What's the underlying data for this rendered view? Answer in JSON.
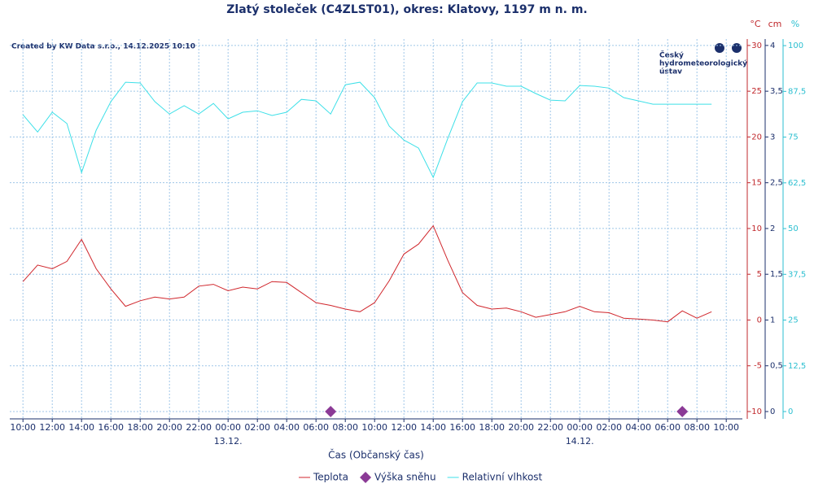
{
  "chart_data": {
    "type": "line",
    "title": "Zlatý stoleček (C4ZLST01), okres: Klatovy, 1197 m n. m.",
    "credit": "Created by KW Data s.r.o., 14.12.2025 10:10",
    "logo_text": [
      "Český",
      "hydrometeorologický",
      "ústav"
    ],
    "x_label": "Čas (Občanský čas)",
    "y_label": "°C",
    "y2_label": "cm",
    "y3_label": "%",
    "xlim": [
      -0.9,
      49.1
    ],
    "xticks": [
      {
        "value": 0,
        "label": "10:00"
      },
      {
        "value": 2,
        "label": "12:00"
      },
      {
        "value": 4,
        "label": "14:00"
      },
      {
        "value": 6,
        "label": "16:00"
      },
      {
        "value": 8,
        "label": "18:00"
      },
      {
        "value": 10,
        "label": "20:00"
      },
      {
        "value": 12,
        "label": "22:00"
      },
      {
        "value": 14,
        "label": "00:00"
      },
      {
        "value": 16,
        "label": "02:00"
      },
      {
        "value": 18,
        "label": "04:00"
      },
      {
        "value": 20,
        "label": "06:00"
      },
      {
        "value": 22,
        "label": "08:00"
      },
      {
        "value": 24,
        "label": "10:00"
      },
      {
        "value": 26,
        "label": "12:00"
      },
      {
        "value": 28,
        "label": "14:00"
      },
      {
        "value": 30,
        "label": "16:00"
      },
      {
        "value": 32,
        "label": "18:00"
      },
      {
        "value": 34,
        "label": "20:00"
      },
      {
        "value": 36,
        "label": "22:00"
      },
      {
        "value": 38,
        "label": "00:00"
      },
      {
        "value": 40,
        "label": "02:00"
      },
      {
        "value": 42,
        "label": "04:00"
      },
      {
        "value": 44,
        "label": "06:00"
      },
      {
        "value": 46,
        "label": "08:00"
      },
      {
        "value": 48,
        "label": "10:00"
      }
    ],
    "date_ticks": [
      {
        "value": 14,
        "label": "13.12."
      },
      {
        "value": 38,
        "label": "14.12."
      }
    ],
    "ylim": [
      -10.8,
      30.7
    ],
    "yticks": [
      30,
      25,
      20,
      15,
      10,
      5,
      0,
      -5,
      -10
    ],
    "y2lim": [
      -0.08,
      4.07
    ],
    "y2ticks": [
      4,
      {
        "value": 3.5,
        "label": "3,5"
      },
      3,
      {
        "value": 2.5,
        "label": "2,5"
      },
      2,
      {
        "value": 1.5,
        "label": "1,5"
      },
      1,
      {
        "value": 0.5,
        "label": "0,5"
      },
      0
    ],
    "y3lim": [
      -2,
      101.8
    ],
    "y3ticks": [
      100,
      {
        "value": 87.5,
        "label": "87,5"
      },
      75,
      {
        "value": 62.5,
        "label": "62,5"
      },
      50,
      {
        "value": 37.5,
        "label": "37,5"
      },
      25,
      {
        "value": 12.5,
        "label": "12,5"
      },
      0
    ],
    "grid": true,
    "series": [
      {
        "name": "Teplota",
        "color": "#d0262c",
        "axis": "y",
        "kind": "line",
        "x": [
          0,
          1,
          2,
          3,
          4,
          5,
          6,
          7,
          8,
          9,
          10,
          11,
          12,
          13,
          14,
          15,
          16,
          17,
          18,
          19,
          20,
          21,
          22,
          23,
          24,
          25,
          26,
          27,
          28,
          29,
          30,
          31,
          32,
          33,
          34,
          35,
          36,
          37,
          38,
          39,
          40,
          41,
          42,
          43,
          44,
          45,
          46,
          47
        ],
        "values": [
          4.2,
          6.0,
          5.6,
          6.4,
          8.8,
          5.6,
          3.4,
          1.5,
          2.1,
          2.5,
          2.3,
          2.5,
          3.7,
          3.9,
          3.2,
          3.6,
          3.4,
          4.2,
          4.1,
          3.0,
          1.9,
          1.6,
          1.2,
          0.9,
          1.9,
          4.3,
          7.2,
          8.3,
          10.3,
          6.5,
          3.0,
          1.6,
          1.2,
          1.3,
          0.9,
          0.3,
          0.6,
          0.9,
          1.5,
          0.9,
          0.8,
          0.2,
          0.1,
          0.0,
          -0.2,
          1.0,
          0.2,
          0.9
        ]
      },
      {
        "name": "Výška sněhu",
        "color": "#8b3a96",
        "axis": "y2",
        "kind": "marker",
        "x": [
          21,
          45
        ],
        "values": [
          0,
          0
        ]
      },
      {
        "name": "Relativní vlhkost",
        "color": "#3ee0e8",
        "axis": "y3",
        "kind": "line",
        "x": [
          0,
          1,
          2,
          3,
          4,
          5,
          6,
          7,
          8,
          9,
          10,
          11,
          12,
          13,
          14,
          15,
          16,
          17,
          18,
          19,
          20,
          21,
          22,
          23,
          24,
          25,
          26,
          27,
          28,
          29,
          30,
          31,
          32,
          33,
          34,
          35,
          36,
          37,
          38,
          39,
          40,
          41,
          42,
          43,
          44,
          45,
          46,
          47
        ],
        "values": [
          81.1,
          76.4,
          81.8,
          78.7,
          65.3,
          76.9,
          84.7,
          90,
          89.8,
          84.7,
          81.3,
          83.6,
          81.3,
          84.2,
          80,
          81.8,
          82.2,
          80.9,
          81.8,
          85.3,
          84.9,
          81.3,
          89.3,
          90,
          85.8,
          78,
          74.2,
          72,
          64,
          74.7,
          84.7,
          89.8,
          89.8,
          88.9,
          88.9,
          86.9,
          85.1,
          84.9,
          89.1,
          88.9,
          88.4,
          85.8,
          84.9,
          84,
          84,
          84,
          84,
          84
        ]
      }
    ]
  }
}
